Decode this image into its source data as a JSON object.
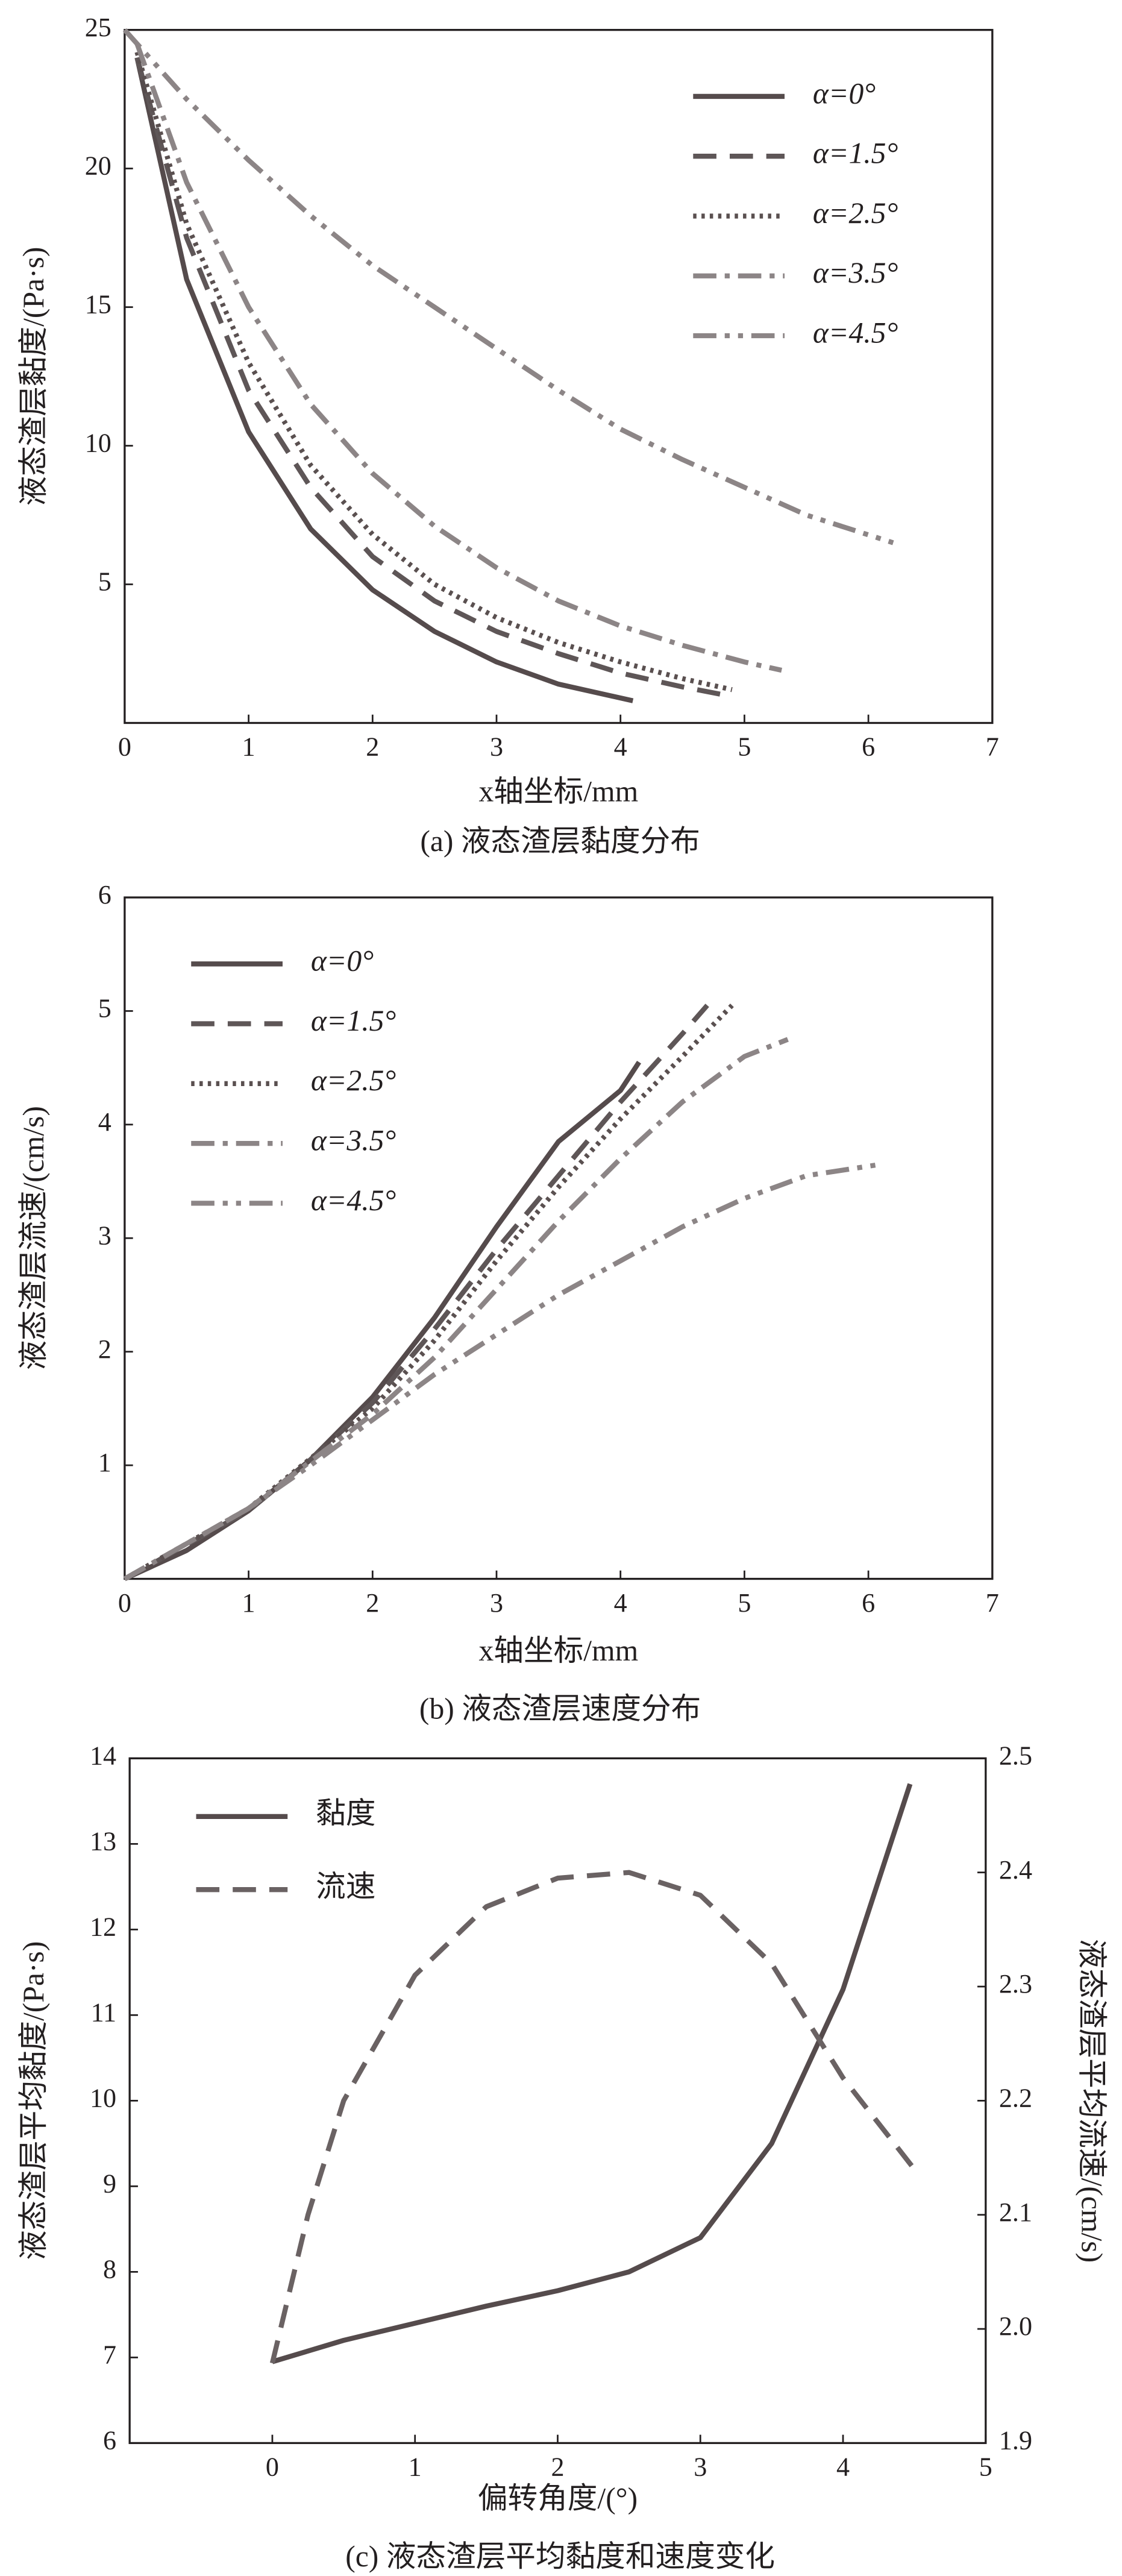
{
  "chart_data": [
    {
      "type": "line",
      "title": "(a) 液态渣层黏度分布",
      "x_label": "x轴坐标/mm",
      "y_label": "液态渣层黏度/(Pa·s)",
      "xlim": [
        0,
        7
      ],
      "xticks": [
        0,
        1,
        2,
        3,
        4,
        5,
        6,
        7
      ],
      "ylim": [
        0,
        25
      ],
      "yticks": [
        5,
        10,
        15,
        20,
        25
      ],
      "legend": "top-right",
      "series": [
        {
          "name": "α=0°",
          "color": "#554b4c",
          "dash": "solid",
          "x": [
            0.1,
            0.5,
            1,
            1.5,
            2,
            2.5,
            3,
            3.5,
            4.1
          ],
          "values": [
            24,
            16,
            10.5,
            7,
            4.8,
            3.3,
            2.2,
            1.4,
            0.8
          ]
        },
        {
          "name": "α=1.5°",
          "color": "#5e5657",
          "dash": "dashed",
          "x": [
            0.1,
            0.5,
            1,
            1.5,
            2,
            2.5,
            3,
            3.5,
            4,
            4.5,
            4.85
          ],
          "values": [
            24,
            17.5,
            12,
            8.5,
            6,
            4.4,
            3.3,
            2.5,
            1.8,
            1.3,
            1.0
          ]
        },
        {
          "name": "α=2.5°",
          "color": "#5a5050",
          "dash": "dotted",
          "x": [
            0.1,
            0.5,
            1,
            1.5,
            2,
            2.5,
            3,
            3.5,
            4,
            4.5,
            4.9
          ],
          "values": [
            24.2,
            18,
            13,
            9.3,
            6.8,
            5,
            3.8,
            2.9,
            2.2,
            1.6,
            1.2
          ]
        },
        {
          "name": "α=3.5°",
          "color": "#8c8586",
          "dash": "dashdot",
          "x": [
            0.1,
            0.5,
            1,
            1.5,
            2,
            2.5,
            3,
            3.5,
            4,
            4.5,
            5,
            5.3
          ],
          "values": [
            24.5,
            19.5,
            15,
            11.5,
            9,
            7.1,
            5.6,
            4.4,
            3.5,
            2.8,
            2.2,
            1.9
          ]
        },
        {
          "name": "α=4.5°",
          "color": "#8c8586",
          "dash": "dashdotdot",
          "x": [
            0,
            0.5,
            1,
            1.5,
            2,
            2.5,
            3,
            3.5,
            4,
            4.5,
            5,
            5.5,
            6.2
          ],
          "values": [
            25,
            22.5,
            20.3,
            18.3,
            16.5,
            15,
            13.5,
            12,
            10.6,
            9.5,
            8.5,
            7.5,
            6.5
          ]
        }
      ]
    },
    {
      "type": "line",
      "title": "(b) 液态渣层速度分布",
      "x_label": "x轴坐标/mm",
      "y_label": "液态渣层流速/(cm/s)",
      "xlim": [
        0,
        7
      ],
      "xticks": [
        0,
        1,
        2,
        3,
        4,
        5,
        6,
        7
      ],
      "ylim": [
        0,
        6
      ],
      "yticks": [
        1,
        2,
        3,
        4,
        5,
        6
      ],
      "legend": "top-left",
      "series": [
        {
          "name": "α=0°",
          "color": "#554b4c",
          "dash": "solid",
          "x": [
            0,
            0.5,
            1,
            1.5,
            2,
            2.5,
            3,
            3.5,
            4,
            4.15
          ],
          "values": [
            0,
            0.25,
            0.6,
            1.05,
            1.6,
            2.3,
            3.1,
            3.85,
            4.3,
            4.55
          ]
        },
        {
          "name": "α=1.5°",
          "color": "#5e5657",
          "dash": "dashed",
          "x": [
            0,
            1,
            1.5,
            2,
            2.5,
            3,
            3.5,
            4,
            4.5,
            4.7
          ],
          "values": [
            0,
            0.6,
            1.05,
            1.55,
            2.2,
            2.9,
            3.55,
            4.2,
            4.8,
            5.05
          ]
        },
        {
          "name": "α=2.5°",
          "color": "#5a5050",
          "dash": "dotted",
          "x": [
            0,
            1,
            2,
            2.5,
            3,
            3.5,
            4,
            4.5,
            4.9
          ],
          "values": [
            0,
            0.62,
            1.5,
            2.1,
            2.8,
            3.45,
            4.05,
            4.6,
            5.05
          ]
        },
        {
          "name": "α=3.5°",
          "color": "#8c8586",
          "dash": "dashdot",
          "x": [
            0,
            1,
            2,
            2.5,
            3,
            3.5,
            4,
            4.5,
            5,
            5.35
          ],
          "values": [
            0,
            0.62,
            1.45,
            1.95,
            2.55,
            3.15,
            3.7,
            4.2,
            4.6,
            4.75
          ]
        },
        {
          "name": "α=4.5°",
          "color": "#8c8586",
          "dash": "dashdotdot",
          "x": [
            0,
            1,
            1.5,
            2,
            2.5,
            3,
            3.5,
            4,
            4.5,
            5,
            5.5,
            6.1
          ],
          "values": [
            0,
            0.62,
            1.0,
            1.4,
            1.8,
            2.15,
            2.5,
            2.8,
            3.1,
            3.35,
            3.55,
            3.65
          ]
        }
      ]
    },
    {
      "type": "line",
      "title": "(c) 液态渣层平均黏度和速度变化",
      "x_label": "偏转角度/(°)",
      "y_label": "液态渣层平均黏度/(Pa·s)",
      "y2_label": "液态渣层平均流速/(cm/s)",
      "xlim": [
        -1,
        5
      ],
      "xticks": [
        0,
        1,
        2,
        3,
        4,
        5
      ],
      "ylim": [
        6,
        14
      ],
      "yticks": [
        6,
        7,
        8,
        9,
        10,
        11,
        12,
        13,
        14
      ],
      "y2lim": [
        1.9,
        2.5
      ],
      "y2ticks": [
        1.9,
        {
          "value": 2,
          "label": "2.0"
        },
        2.1,
        2.2,
        2.3,
        2.4,
        2.5
      ],
      "legend": "top-left",
      "series": [
        {
          "name": "黏度",
          "color": "#554b4c",
          "dash": "solid",
          "x": [
            0,
            0.5,
            1,
            1.5,
            2,
            2.5,
            3,
            3.5,
            4,
            4.47
          ],
          "values": [
            6.95,
            7.2,
            7.4,
            7.6,
            7.78,
            8.0,
            8.4,
            9.5,
            11.3,
            13.7
          ]
        },
        {
          "name": "流速",
          "color": "#6a6263",
          "dash": "dashed",
          "axis": "y2",
          "x": [
            0,
            0.25,
            0.5,
            1,
            1.5,
            2,
            2.5,
            3,
            3.5,
            4,
            4.5
          ],
          "values": [
            1.97,
            2.1,
            2.2,
            2.31,
            2.37,
            2.395,
            2.4,
            2.38,
            2.32,
            2.22,
            2.14
          ]
        }
      ]
    }
  ]
}
